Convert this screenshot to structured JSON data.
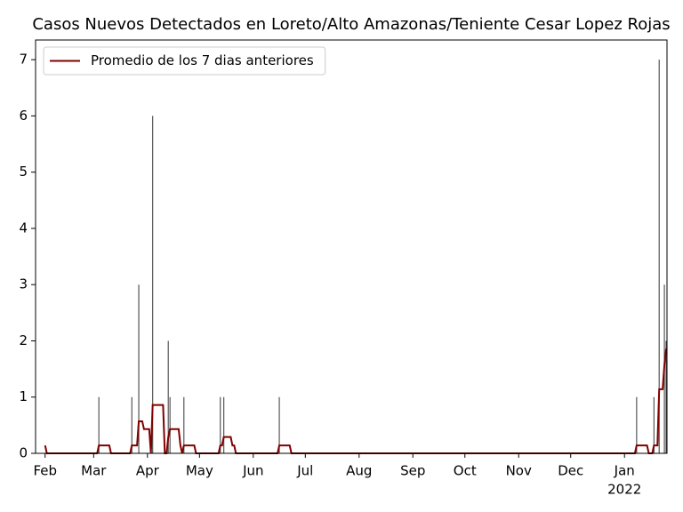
{
  "chart_data": {
    "type": "combo",
    "title": "Casos Nuevos Detectados en Loreto/Alto Amazonas/Teniente Cesar Lopez Rojas",
    "bars": {
      "color": "#555555",
      "x": [
        31,
        50,
        54,
        62,
        71,
        72,
        80,
        101,
        103,
        135,
        341,
        351,
        354,
        357,
        358
      ],
      "values": [
        1,
        1,
        3,
        6,
        2,
        1,
        1,
        1,
        1,
        1,
        1,
        1,
        7,
        3,
        2
      ]
    },
    "series": [
      {
        "name": "Promedio de los 7 dias anteriores",
        "color": "#800000",
        "x": [
          0,
          1,
          30,
          31,
          37,
          38,
          49,
          50,
          53,
          54,
          56,
          57,
          60,
          61,
          62,
          68,
          69,
          70,
          71,
          72,
          77,
          78,
          79,
          80,
          86,
          87,
          100,
          101,
          102,
          103,
          107,
          108,
          109,
          110,
          134,
          135,
          141,
          142,
          340,
          341,
          347,
          348,
          350,
          351,
          353,
          354,
          356,
          357,
          358
        ],
        "values": [
          0.14,
          0,
          0,
          0.14,
          0.14,
          0,
          0,
          0.14,
          0.14,
          0.57,
          0.57,
          0.43,
          0.43,
          0,
          0.86,
          0.86,
          0,
          0,
          0.29,
          0.43,
          0.43,
          0.14,
          0,
          0.14,
          0.14,
          0,
          0,
          0.14,
          0.14,
          0.29,
          0.29,
          0.14,
          0.14,
          0,
          0,
          0.14,
          0.14,
          0,
          0,
          0.14,
          0.14,
          0,
          0,
          0.14,
          0.14,
          1.14,
          1.14,
          1.57,
          1.86
        ]
      }
    ],
    "xlim": [
      -5.5,
      358.5
    ],
    "xticks": [
      {
        "value": 0,
        "label": "Feb"
      },
      {
        "value": 28,
        "label": "Mar"
      },
      {
        "value": 59,
        "label": "Apr"
      },
      {
        "value": 89,
        "label": "May"
      },
      {
        "value": 120,
        "label": "Jun"
      },
      {
        "value": 150,
        "label": "Jul"
      },
      {
        "value": 181,
        "label": "Aug"
      },
      {
        "value": 212,
        "label": "Sep"
      },
      {
        "value": 242,
        "label": "Oct"
      },
      {
        "value": 273,
        "label": "Nov"
      },
      {
        "value": 303,
        "label": "Dec"
      },
      {
        "value": 334,
        "label": "Jan"
      }
    ],
    "year_label": "2022",
    "ylim": [
      0,
      7.35
    ],
    "yticks": [
      0,
      1,
      2,
      3,
      4,
      5,
      6,
      7
    ],
    "legend": "upper left"
  }
}
